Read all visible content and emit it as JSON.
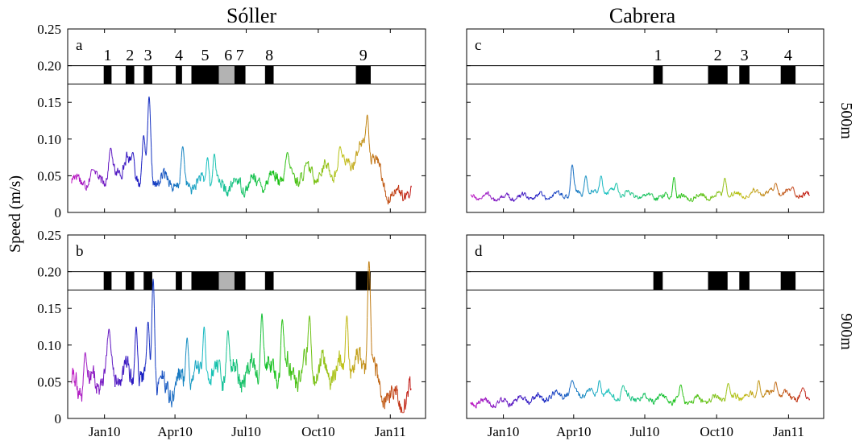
{
  "figure": {
    "columns": [
      "Sóller",
      "Cabrera"
    ],
    "ylabel": "Speed (m/s)",
    "depths": [
      "500m",
      "900m"
    ]
  },
  "chart_data": [
    {
      "type": "line",
      "panel": "a",
      "column": "Sóller",
      "depth": "500m",
      "x_ticks": [
        "Jan10",
        "Apr10",
        "Jul10",
        "Oct10",
        "Jan11"
      ],
      "x_range": [
        "2009-11-15",
        "2011-02-15"
      ],
      "ylim": [
        0,
        0.25
      ],
      "y_ticks": [
        "0",
        "0.05",
        "0.10",
        "0.15",
        "0.20",
        "0.25"
      ],
      "events": [
        {
          "label": "1",
          "start": "2009-12-31",
          "end": "2010-01-10"
        },
        {
          "label": "2",
          "start": "2010-01-28",
          "end": "2010-02-08"
        },
        {
          "label": "3",
          "start": "2010-02-20",
          "end": "2010-03-03"
        },
        {
          "label": "4",
          "start": "2010-04-02",
          "end": "2010-04-10"
        },
        {
          "label": "5",
          "start": "2010-04-22",
          "end": "2010-05-27"
        },
        {
          "label": "6",
          "start": "2010-05-27",
          "end": "2010-06-16",
          "shaded": true
        },
        {
          "label": "7",
          "start": "2010-06-16",
          "end": "2010-06-30"
        },
        {
          "label": "8",
          "start": "2010-07-25",
          "end": "2010-08-05"
        },
        {
          "label": "9",
          "start": "2010-11-18",
          "end": "2010-12-07"
        }
      ],
      "series": {
        "start": "2009-11-20",
        "end": "2011-01-28",
        "base": [
          [
            0,
            0.043
          ],
          [
            0.06,
            0.048
          ],
          [
            0.12,
            0.05
          ],
          [
            0.16,
            0.07
          ],
          [
            0.2,
            0.045
          ],
          [
            0.28,
            0.045
          ],
          [
            0.32,
            0.036
          ],
          [
            0.36,
            0.04
          ],
          [
            0.42,
            0.036
          ],
          [
            0.46,
            0.036
          ],
          [
            0.5,
            0.038
          ],
          [
            0.56,
            0.042
          ],
          [
            0.6,
            0.048
          ],
          [
            0.66,
            0.05
          ],
          [
            0.72,
            0.055
          ],
          [
            0.78,
            0.058
          ],
          [
            0.82,
            0.07
          ],
          [
            0.86,
            0.09
          ],
          [
            0.9,
            0.065
          ],
          [
            0.93,
            0.025
          ],
          [
            0.97,
            0.025
          ],
          [
            1,
            0.03
          ]
        ],
        "noise": 0.014,
        "spikes": [
          [
            0.065,
            0.058
          ],
          [
            0.115,
            0.088
          ],
          [
            0.18,
            0.082
          ],
          [
            0.212,
            0.105
          ],
          [
            0.228,
            0.158
          ],
          [
            0.327,
            0.09
          ],
          [
            0.4,
            0.075
          ],
          [
            0.42,
            0.08
          ],
          [
            0.635,
            0.082
          ],
          [
            0.79,
            0.09
          ],
          [
            0.87,
            0.133
          ]
        ]
      }
    },
    {
      "type": "line",
      "panel": "b",
      "column": "Sóller",
      "depth": "900m",
      "x_ticks": [
        "Jan10",
        "Apr10",
        "Jul10",
        "Oct10",
        "Jan11"
      ],
      "x_range": [
        "2009-11-15",
        "2011-02-15"
      ],
      "ylim": [
        0,
        0.25
      ],
      "y_ticks": [
        "0",
        "0.05",
        "0.10",
        "0.15",
        "0.20",
        "0.25"
      ],
      "events": [
        {
          "label": "1",
          "start": "2009-12-31",
          "end": "2010-01-10"
        },
        {
          "label": "2",
          "start": "2010-01-28",
          "end": "2010-02-08"
        },
        {
          "label": "3",
          "start": "2010-02-20",
          "end": "2010-03-03"
        },
        {
          "label": "4",
          "start": "2010-04-02",
          "end": "2010-04-10"
        },
        {
          "label": "5",
          "start": "2010-04-22",
          "end": "2010-05-27"
        },
        {
          "label": "6",
          "start": "2010-05-27",
          "end": "2010-06-16",
          "shaded": true
        },
        {
          "label": "7",
          "start": "2010-06-16",
          "end": "2010-06-30"
        },
        {
          "label": "8",
          "start": "2010-07-25",
          "end": "2010-08-05"
        },
        {
          "label": "9",
          "start": "2010-11-18",
          "end": "2010-12-07"
        }
      ],
      "series": {
        "start": "2009-11-20",
        "end": "2011-01-28",
        "base": [
          [
            0,
            0.04
          ],
          [
            0.06,
            0.05
          ],
          [
            0.12,
            0.06
          ],
          [
            0.16,
            0.055
          ],
          [
            0.2,
            0.045
          ],
          [
            0.26,
            0.04
          ],
          [
            0.3,
            0.045
          ],
          [
            0.36,
            0.05
          ],
          [
            0.42,
            0.055
          ],
          [
            0.5,
            0.06
          ],
          [
            0.56,
            0.065
          ],
          [
            0.62,
            0.065
          ],
          [
            0.7,
            0.062
          ],
          [
            0.78,
            0.065
          ],
          [
            0.84,
            0.075
          ],
          [
            0.88,
            0.07
          ],
          [
            0.91,
            0.035
          ],
          [
            0.95,
            0.025
          ],
          [
            1,
            0.025
          ]
        ],
        "noise": 0.025,
        "spikes": [
          [
            0.04,
            0.09
          ],
          [
            0.11,
            0.122
          ],
          [
            0.19,
            0.125
          ],
          [
            0.225,
            0.132
          ],
          [
            0.24,
            0.19
          ],
          [
            0.34,
            0.11
          ],
          [
            0.39,
            0.125
          ],
          [
            0.46,
            0.12
          ],
          [
            0.56,
            0.143
          ],
          [
            0.62,
            0.135
          ],
          [
            0.7,
            0.14
          ],
          [
            0.81,
            0.14
          ],
          [
            0.875,
            0.215
          ]
        ]
      }
    },
    {
      "type": "line",
      "panel": "c",
      "column": "Cabrera",
      "depth": "500m",
      "x_ticks": [
        "Jan10",
        "Apr10",
        "Jul10",
        "Oct10",
        "Jan11"
      ],
      "x_range": [
        "2009-11-15",
        "2011-02-15"
      ],
      "ylim": [
        0,
        0.25
      ],
      "events": [
        {
          "label": "1",
          "start": "2010-07-12",
          "end": "2010-07-24"
        },
        {
          "label": "2",
          "start": "2010-09-20",
          "end": "2010-10-15"
        },
        {
          "label": "3",
          "start": "2010-10-30",
          "end": "2010-11-12"
        },
        {
          "label": "4",
          "start": "2010-12-22",
          "end": "2011-01-10"
        }
      ],
      "series": {
        "start": "2009-11-20",
        "end": "2011-01-28",
        "base": [
          [
            0,
            0.022
          ],
          [
            0.1,
            0.02
          ],
          [
            0.2,
            0.022
          ],
          [
            0.3,
            0.025
          ],
          [
            0.4,
            0.028
          ],
          [
            0.5,
            0.023
          ],
          [
            0.6,
            0.02
          ],
          [
            0.7,
            0.022
          ],
          [
            0.8,
            0.025
          ],
          [
            0.9,
            0.028
          ],
          [
            1,
            0.022
          ]
        ],
        "noise": 0.006,
        "spikes": [
          [
            0.3,
            0.065
          ],
          [
            0.34,
            0.05
          ],
          [
            0.385,
            0.05
          ],
          [
            0.43,
            0.04
          ],
          [
            0.6,
            0.048
          ],
          [
            0.75,
            0.047
          ],
          [
            0.9,
            0.04
          ],
          [
            0.95,
            0.035
          ]
        ]
      }
    },
    {
      "type": "line",
      "panel": "d",
      "column": "Cabrera",
      "depth": "900m",
      "x_ticks": [
        "Jan10",
        "Apr10",
        "Jul10",
        "Oct10",
        "Jan11"
      ],
      "x_range": [
        "2009-11-15",
        "2011-02-15"
      ],
      "ylim": [
        0,
        0.25
      ],
      "events": [
        {
          "label": "1",
          "start": "2010-07-12",
          "end": "2010-07-24"
        },
        {
          "label": "2",
          "start": "2010-09-20",
          "end": "2010-10-15"
        },
        {
          "label": "3",
          "start": "2010-10-30",
          "end": "2010-11-12"
        },
        {
          "label": "4",
          "start": "2010-12-22",
          "end": "2011-01-10"
        }
      ],
      "series": {
        "start": "2009-11-20",
        "end": "2011-01-28",
        "base": [
          [
            0,
            0.022
          ],
          [
            0.1,
            0.022
          ],
          [
            0.2,
            0.028
          ],
          [
            0.3,
            0.035
          ],
          [
            0.4,
            0.033
          ],
          [
            0.5,
            0.027
          ],
          [
            0.6,
            0.025
          ],
          [
            0.7,
            0.025
          ],
          [
            0.8,
            0.03
          ],
          [
            0.9,
            0.033
          ],
          [
            1,
            0.027
          ]
        ],
        "noise": 0.007,
        "spikes": [
          [
            0.3,
            0.052
          ],
          [
            0.38,
            0.052
          ],
          [
            0.45,
            0.045
          ],
          [
            0.62,
            0.046
          ],
          [
            0.76,
            0.048
          ],
          [
            0.85,
            0.052
          ],
          [
            0.9,
            0.05
          ],
          [
            0.98,
            0.042
          ]
        ]
      }
    }
  ]
}
